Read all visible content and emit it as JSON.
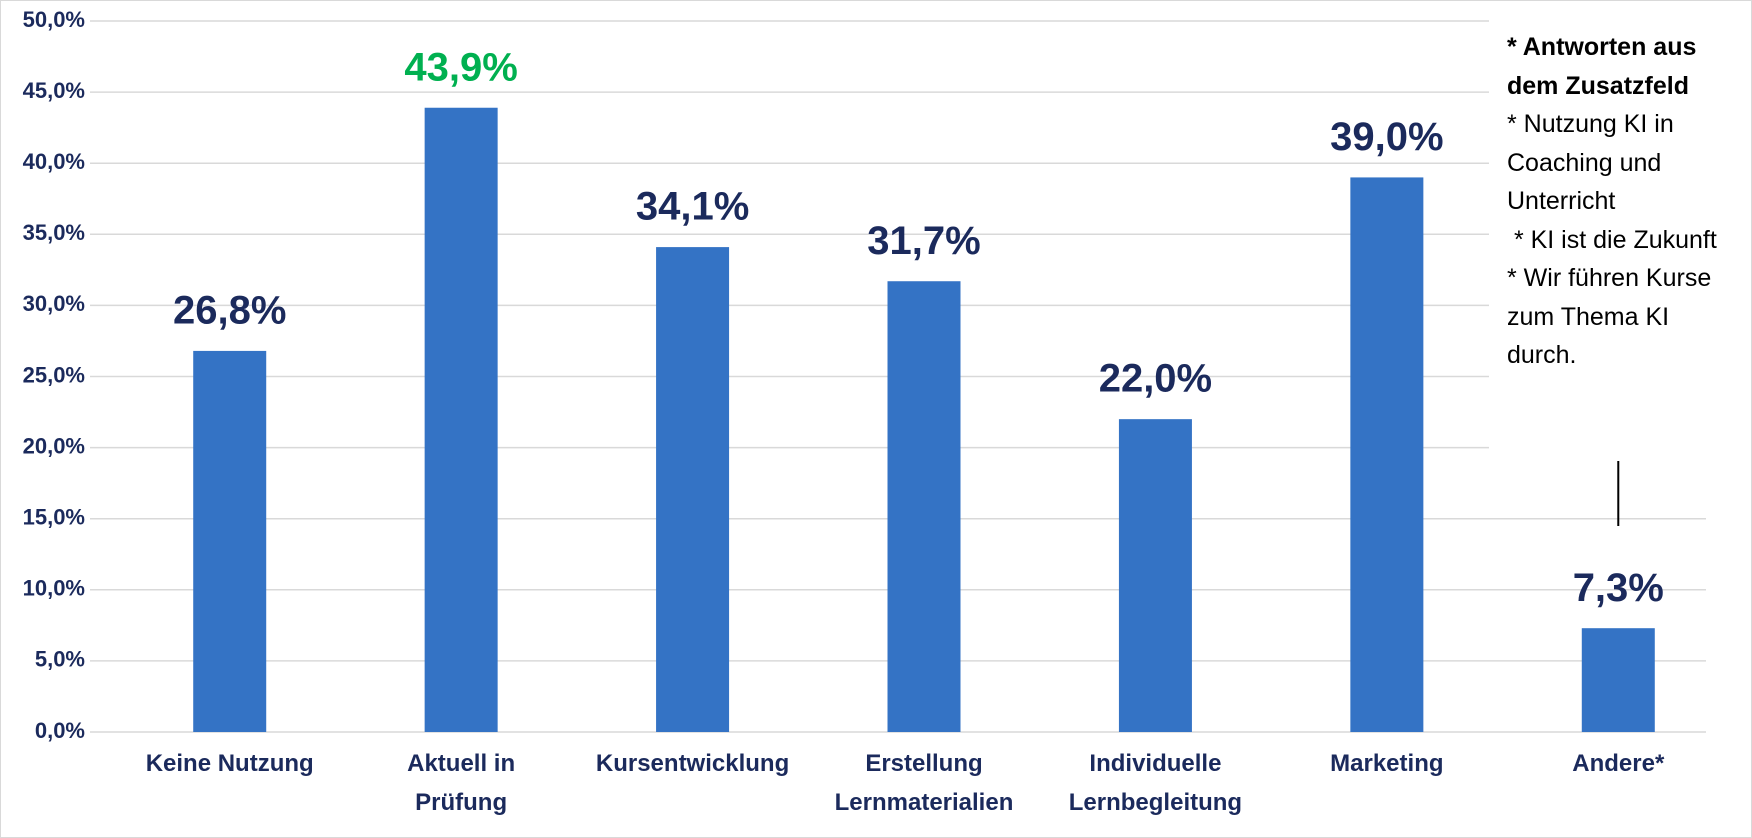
{
  "chart_data": {
    "type": "bar",
    "categories": [
      "Keine Nutzung",
      "Aktuell in\nPrüfung",
      "Kursentwicklung",
      "Erstellung\nLernmaterialien",
      "Individuelle\nLernbegleitung",
      "Marketing",
      "Andere*"
    ],
    "values": [
      26.8,
      43.9,
      34.1,
      31.7,
      22.0,
      39.0,
      7.3
    ],
    "value_labels": [
      "26,8%",
      "43,9%",
      "34,1%",
      "31,7%",
      "22,0%",
      "39,0%",
      "7,3%"
    ],
    "value_label_colors": [
      "#1b2a5c",
      "#00b050",
      "#1b2a5c",
      "#1b2a5c",
      "#1b2a5c",
      "#1b2a5c",
      "#1b2a5c"
    ],
    "color": "#3473c5",
    "ylim": [
      0,
      50
    ],
    "yticks": [
      {
        "value": 0,
        "label": "0,0%"
      },
      {
        "value": 5,
        "label": "5,0%"
      },
      {
        "value": 10,
        "label": "10,0%"
      },
      {
        "value": 15,
        "label": "15,0%"
      },
      {
        "value": 20,
        "label": "20,0%"
      },
      {
        "value": 25,
        "label": "25,0%"
      },
      {
        "value": 30,
        "label": "30,0%"
      },
      {
        "value": 35,
        "label": "35,0%"
      },
      {
        "value": 40,
        "label": "40,0%"
      },
      {
        "value": 45,
        "label": "45,0%"
      },
      {
        "value": 50,
        "label": "50,0%"
      }
    ],
    "grid": true,
    "annotation": {
      "title": "* Antworten aus dem Zusatzfeld",
      "items": [
        "* Nutzung KI in Coaching und Unterricht",
        " * KI ist die Zukunft",
        "* Wir führen Kurse zum Thema KI durch."
      ]
    }
  }
}
